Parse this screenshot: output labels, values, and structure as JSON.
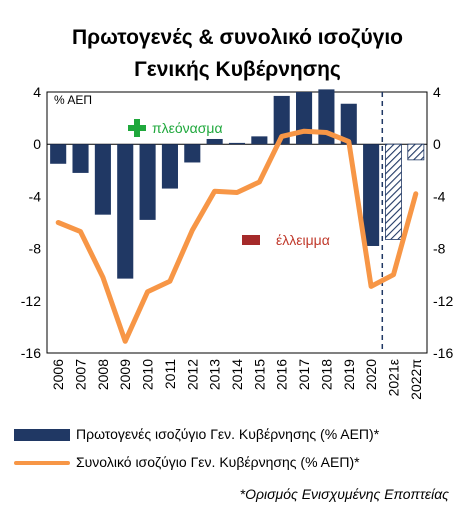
{
  "title_line1": "Πρωτογενές & συνολικό ισοζύγιο",
  "title_line2": "Γενικής Κυβέρνησης",
  "unit_label": "% ΑΕΠ",
  "surplus_label": "πλεόνασμα",
  "deficit_label": "έλλειμμα",
  "legend_bar": "Πρωτογενές ισοζύγιο Γεν. Κυβέρνησης (% ΑΕΠ)*",
  "legend_line": "Συνολικό ισοζύγιο Γεν. Κυβέρνησης (% ΑΕΠ)*",
  "footnote": "*Ορισμός Ενισχυμένης Εποπτείας",
  "colors": {
    "bar": "#203864",
    "line": "#f79646",
    "surplus_icon": "#1fa83c",
    "deficit_icon": "#a52a2a",
    "forecast_hatch": "#203864",
    "divider": "#203864"
  },
  "icons": {
    "surplus": "plus-icon",
    "deficit": "minus-icon"
  },
  "chart_data": {
    "type": "bar",
    "categories": [
      "2006",
      "2007",
      "2008",
      "2009",
      "2010",
      "2011",
      "2012",
      "2013",
      "2014",
      "2015",
      "2016",
      "2017",
      "2018",
      "2019",
      "2020",
      "2021ε",
      "2022π"
    ],
    "series": [
      {
        "name": "Πρωτογενές ισοζύγιο Γεν. Κυβέρνησης (% ΑΕΠ)*",
        "type": "bar",
        "values": [
          -1.5,
          -2.2,
          -5.4,
          -10.3,
          -5.8,
          -3.4,
          -1.4,
          0.4,
          0.1,
          0.6,
          3.7,
          4.0,
          4.2,
          3.1,
          -7.8,
          -7.3,
          -1.2
        ],
        "forecast_from": "2021ε"
      },
      {
        "name": "Συνολικό ισοζύγιο Γεν. Κυβέρνησης (% ΑΕΠ)*",
        "type": "line",
        "values": [
          -6.0,
          -6.7,
          -10.2,
          -15.1,
          -11.3,
          -10.5,
          -6.6,
          -3.6,
          -3.7,
          -2.9,
          0.6,
          1.0,
          0.9,
          0.2,
          -10.9,
          -10.0,
          -3.8
        ]
      }
    ],
    "ylim": [
      -16,
      4
    ],
    "yticks": [
      4,
      0,
      -4,
      -8,
      -12,
      -16
    ],
    "ylabel": "% ΑΕΠ",
    "grid": false,
    "legend_position": "bottom"
  }
}
